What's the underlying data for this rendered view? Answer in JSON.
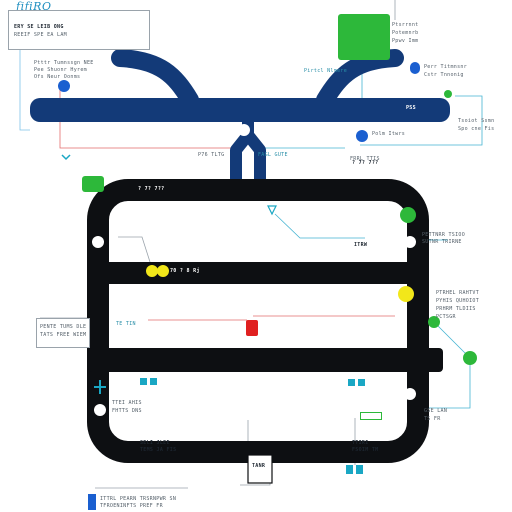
{
  "title": "fifiRO",
  "colors": {
    "navy": "#133a78",
    "black": "#0d0f12",
    "green": "#2db83a",
    "blue": "#1a5fd0",
    "teal": "#1aa7c4",
    "red": "#e02020",
    "yellow": "#f2e71a",
    "line_gray": "#9aa3ab",
    "line_red": "#e36b6b",
    "line_teal": "#44b4d2"
  },
  "labels": {
    "top_box": [
      "ERY SE LEIB ONG",
      "REEIF SPE EA LAM"
    ],
    "top_left": [
      "Ptttr Tumnssgn NEE",
      "Pee Shuonr Hyrem",
      "Ofs Neur Oonms"
    ],
    "top_right": [
      "Ptsrrnnt",
      "Potemnrb",
      "Ppwv Imm"
    ],
    "right_top": [
      "Pirtcl Nlmere"
    ],
    "right_mid": [
      "Perr Titmnsnr",
      "Cstr Tnnonig",
      "Tsoiot Ssmn",
      "Spo cne Fis",
      "Polm Itwrs"
    ],
    "navy_right": "PSS",
    "mid_left": "P76 TLTG",
    "mid_right": [
      "FAGL GUTE",
      "FRRL TTIS"
    ],
    "sec_a": "? 7? 7??",
    "sec_b": "? 7? 7??",
    "right_panel": [
      "PETTNRR TSIOO",
      "SUTNR TRIRNE"
    ],
    "node_tag": "ITRW",
    "first_row": "70 ? 8 Rj",
    "right_col": [
      "PTRHEL RAHTVT",
      "PYHIS QUHOIOT",
      "PRHRM TLDIIS",
      "PCTSGR"
    ],
    "left_box": [
      "PENTE TUMS DLE",
      "TATS FREE WIEM"
    ],
    "row_left": "TE TIN",
    "left_bottom": [
      "TTEI AHIS",
      "FHTTS DNS"
    ],
    "bottom_left": [
      "SELI JLEE",
      "TEMS JA FIS"
    ],
    "bottom_right": [
      "TTIRI",
      "FSOIM TM"
    ],
    "bottom_small": [
      "GSE LAN",
      "TS FR"
    ],
    "bottom_center": "TANR",
    "footer": [
      "ITTRL PEARN TRSRNPWR SN",
      "TFROENINFTS PREF FR"
    ]
  }
}
